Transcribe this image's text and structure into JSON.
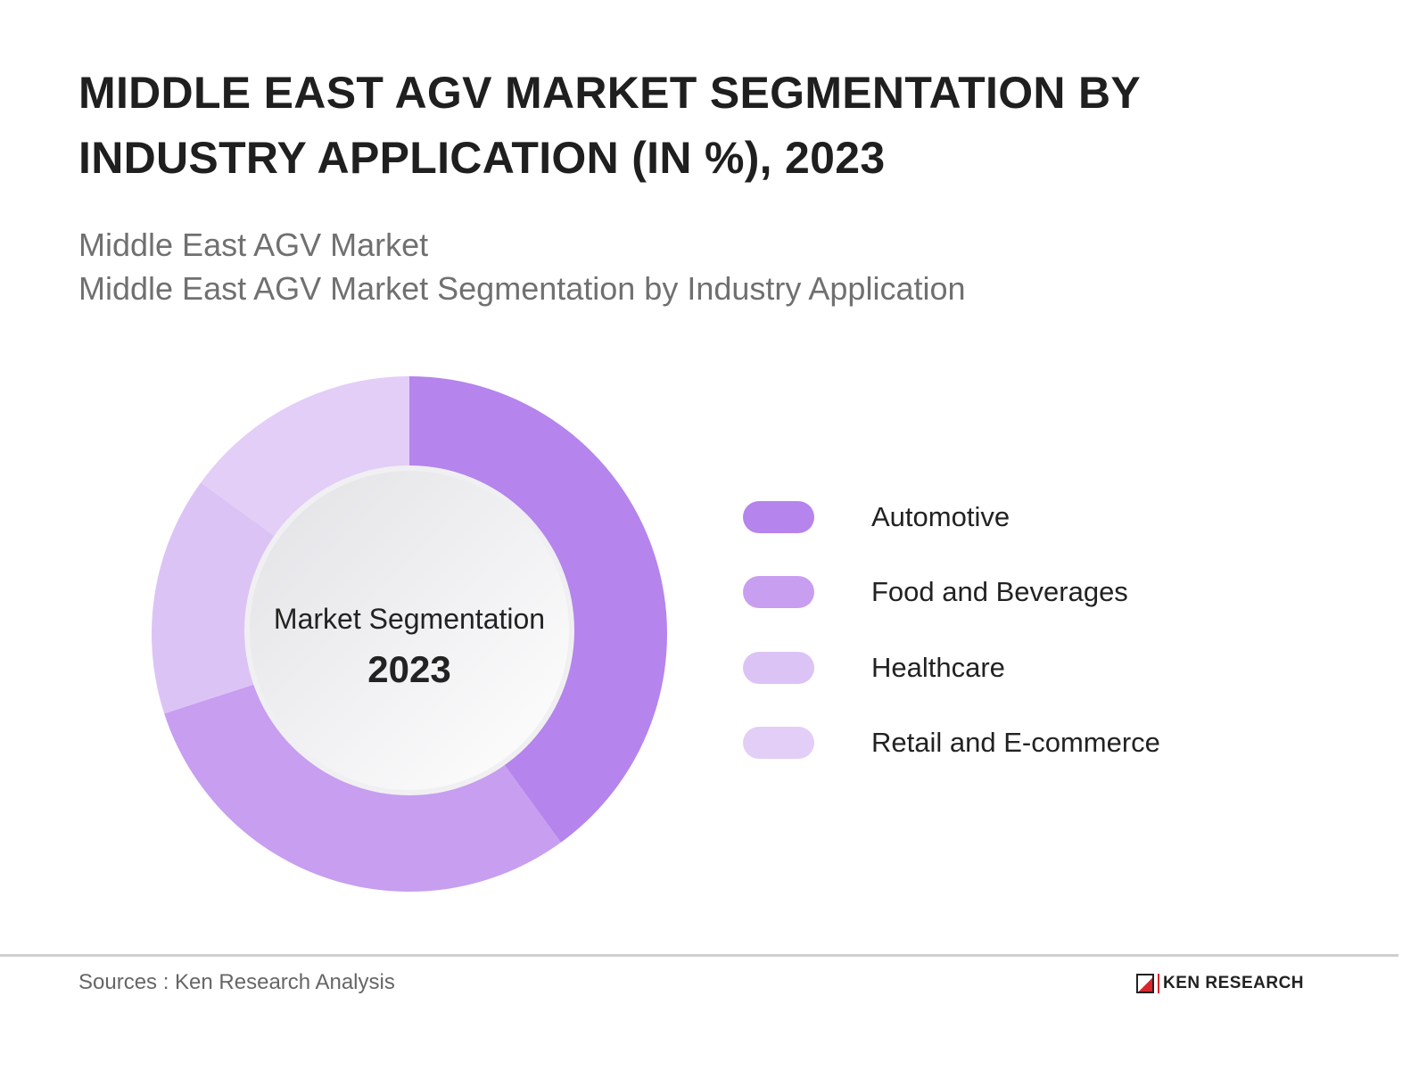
{
  "header": {
    "title": "MIDDLE EAST AGV MARKET SEGMENTATION BY INDUSTRY APPLICATION (IN %), 2023",
    "subtitle1": "Middle East AGV Market",
    "subtitle2": "Middle East AGV Market Segmentation by Industry Application"
  },
  "chart_data": {
    "type": "pie",
    "variant": "donut",
    "title": "MIDDLE EAST AGV MARKET SEGMENTATION BY INDUSTRY APPLICATION (IN %), 2023",
    "center_label": "Market Segmentation",
    "center_year": "2023",
    "categories": [
      "Automotive",
      "Food and Beverages",
      "Healthcare",
      "Retail and E-commerce"
    ],
    "values": [
      40,
      30,
      15,
      15
    ],
    "colors": [
      "#b584ec",
      "#c79ef0",
      "#dcc3f5",
      "#e3cef7"
    ],
    "legend_position": "right"
  },
  "footer": {
    "source": "Sources : Ken Research Analysis",
    "logo": "KEN RESEARCH"
  }
}
